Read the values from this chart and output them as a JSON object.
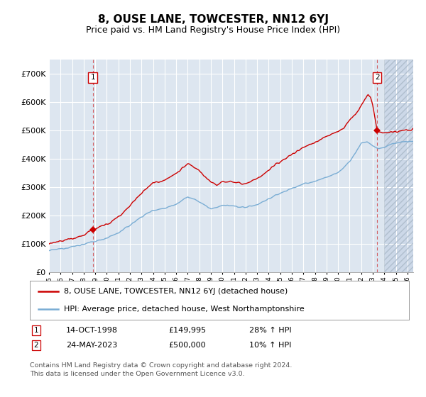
{
  "title": "8, OUSE LANE, TOWCESTER, NN12 6YJ",
  "subtitle": "Price paid vs. HM Land Registry's House Price Index (HPI)",
  "title_fontsize": 11,
  "subtitle_fontsize": 9,
  "background_color": "#ffffff",
  "plot_bg_color": "#dde6f0",
  "hatch_bg_color": "#ccd8e8",
  "grid_color": "#ffffff",
  "red_line_color": "#cc0000",
  "blue_line_color": "#7aadd4",
  "ylim": [
    0,
    750000
  ],
  "yticks": [
    0,
    100000,
    200000,
    300000,
    400000,
    500000,
    600000,
    700000
  ],
  "ytick_labels": [
    "£0",
    "£100K",
    "£200K",
    "£300K",
    "£400K",
    "£500K",
    "£600K",
    "£700K"
  ],
  "sale1_date_x": 1998.79,
  "sale1_price": 149995,
  "sale2_date_x": 2023.38,
  "sale2_price": 500000,
  "hatch_start": 2024.0,
  "xmin": 1995.0,
  "xmax": 2026.5,
  "legend_label_red": "8, OUSE LANE, TOWCESTER, NN12 6YJ (detached house)",
  "legend_label_blue": "HPI: Average price, detached house, West Northamptonshire",
  "annotation1_label": "1",
  "annotation2_label": "2",
  "table_row1": [
    "1",
    "14-OCT-1998",
    "£149,995",
    "28% ↑ HPI"
  ],
  "table_row2": [
    "2",
    "24-MAY-2023",
    "£500,000",
    "10% ↑ HPI"
  ],
  "footer": "Contains HM Land Registry data © Crown copyright and database right 2024.\nThis data is licensed under the Open Government Licence v3.0."
}
